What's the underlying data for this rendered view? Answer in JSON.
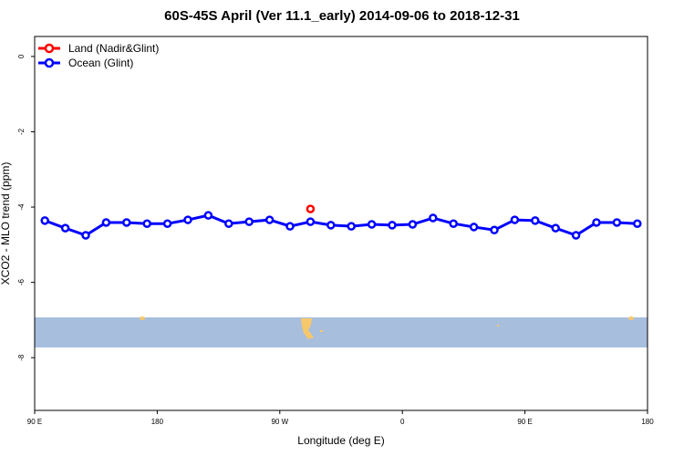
{
  "chart_data": {
    "type": "line",
    "title": "60S-45S April (Ver 11.1_early)   2014-09-06 to 2018-12-31",
    "x_label": "Longitude (deg E)",
    "y_label": "XCO2 - MLO trend (ppm)",
    "x": [
      97.5,
      112.5,
      127.5,
      142.5,
      157.5,
      172.5,
      187.5,
      202.5,
      217.5,
      232.5,
      247.5,
      262.5,
      277.5,
      292.5,
      307.5,
      322.5,
      337.5,
      352.5,
      367.5,
      382.5,
      397.5,
      412.5,
      427.5,
      442.5,
      457.5,
      472.5,
      487.5,
      502.5,
      517.5,
      532.5
    ],
    "series": [
      {
        "name": "Land (Nadir&Glint)",
        "color": "#ff0000",
        "values": [
          null,
          null,
          null,
          null,
          null,
          null,
          null,
          null,
          null,
          null,
          null,
          null,
          null,
          -4.05,
          null,
          null,
          null,
          null,
          null,
          null,
          null,
          null,
          null,
          null,
          null,
          null,
          null,
          null,
          null,
          null
        ]
      },
      {
        "name": "Ocean (Glint)",
        "color": "#0000ff",
        "values": [
          -4.36,
          -4.56,
          -4.75,
          -4.41,
          -4.41,
          -4.44,
          -4.44,
          -4.34,
          -4.22,
          -4.44,
          -4.39,
          -4.34,
          -4.51,
          -4.39,
          -4.48,
          -4.51,
          -4.46,
          -4.48,
          -4.46,
          -4.29,
          -4.44,
          -4.53,
          -4.61,
          -4.34,
          -4.36,
          -4.56,
          -4.75,
          -4.41,
          -4.41,
          -4.44
        ]
      }
    ],
    "xlim": [
      90,
      540
    ],
    "xticks": [
      {
        "value": 90,
        "label": "90 E"
      },
      180,
      {
        "value": 270,
        "label": "90 W"
      },
      {
        "value": 360,
        "label": "0"
      },
      {
        "value": 450,
        "label": "90 E"
      },
      {
        "value": 540,
        "label": "180"
      }
    ],
    "ylim": [
      -9.4,
      0.53
    ],
    "yticks": [
      0,
      -2,
      -4,
      -6,
      -8
    ],
    "legend": "top-left"
  }
}
